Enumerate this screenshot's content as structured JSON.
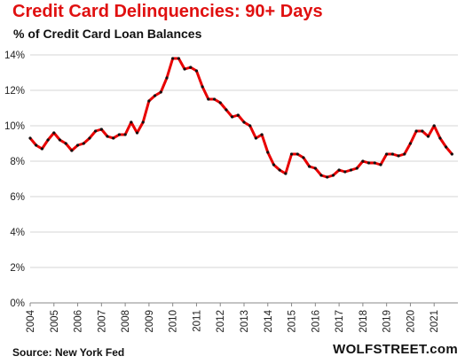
{
  "header": {
    "title": "Credit Card Delinquencies: 90+ Days",
    "subtitle": "% of Credit Card Loan Balances"
  },
  "footer": {
    "source": "Source: New York Fed",
    "brand": "WOLFSTREET.com"
  },
  "colors": {
    "line": "#e80000",
    "title": "#e01010",
    "grid": "#d6d6d6",
    "axis": "#888888"
  },
  "chart_data": {
    "type": "line",
    "title": "Credit Card Delinquencies: 90+ Days",
    "subtitle": "% of Credit Card Loan Balances",
    "xlabel": "",
    "ylabel": "",
    "ylim": [
      0,
      14
    ],
    "xlim": [
      2004,
      2022
    ],
    "yticks": [
      0,
      2,
      4,
      6,
      8,
      10,
      12,
      14
    ],
    "ytick_labels": [
      "0%",
      "2%",
      "4%",
      "6%",
      "8%",
      "10%",
      "12%",
      "14%"
    ],
    "xtick_labels": [
      "2004",
      "2005",
      "2006",
      "2007",
      "2008",
      "2009",
      "2010",
      "2011",
      "2012",
      "2013",
      "2014",
      "2015",
      "2016",
      "2017",
      "2018",
      "2019",
      "2020",
      "2021"
    ],
    "grid": true,
    "legend": "none",
    "series": [
      {
        "frequency": "quarterly",
        "start": "2004 Q1",
        "values": [
          9.3,
          8.9,
          8.7,
          9.2,
          9.6,
          9.2,
          9.0,
          8.6,
          8.9,
          9.0,
          9.3,
          9.7,
          9.8,
          9.4,
          9.3,
          9.5,
          9.5,
          10.2,
          9.6,
          10.2,
          11.4,
          11.7,
          11.9,
          12.7,
          13.8,
          13.8,
          13.2,
          13.3,
          13.1,
          12.2,
          11.5,
          11.5,
          11.3,
          10.9,
          10.5,
          10.6,
          10.2,
          10.0,
          9.3,
          9.5,
          8.5,
          7.8,
          7.5,
          7.3,
          8.4,
          8.4,
          8.2,
          7.7,
          7.6,
          7.2,
          7.1,
          7.2,
          7.5,
          7.4,
          7.5,
          7.6,
          8.0,
          7.9,
          7.9,
          7.8,
          8.4,
          8.4,
          8.3,
          8.4,
          9.0,
          9.7,
          9.7,
          9.4,
          10.0,
          9.3,
          8.8,
          8.4
        ]
      }
    ]
  }
}
